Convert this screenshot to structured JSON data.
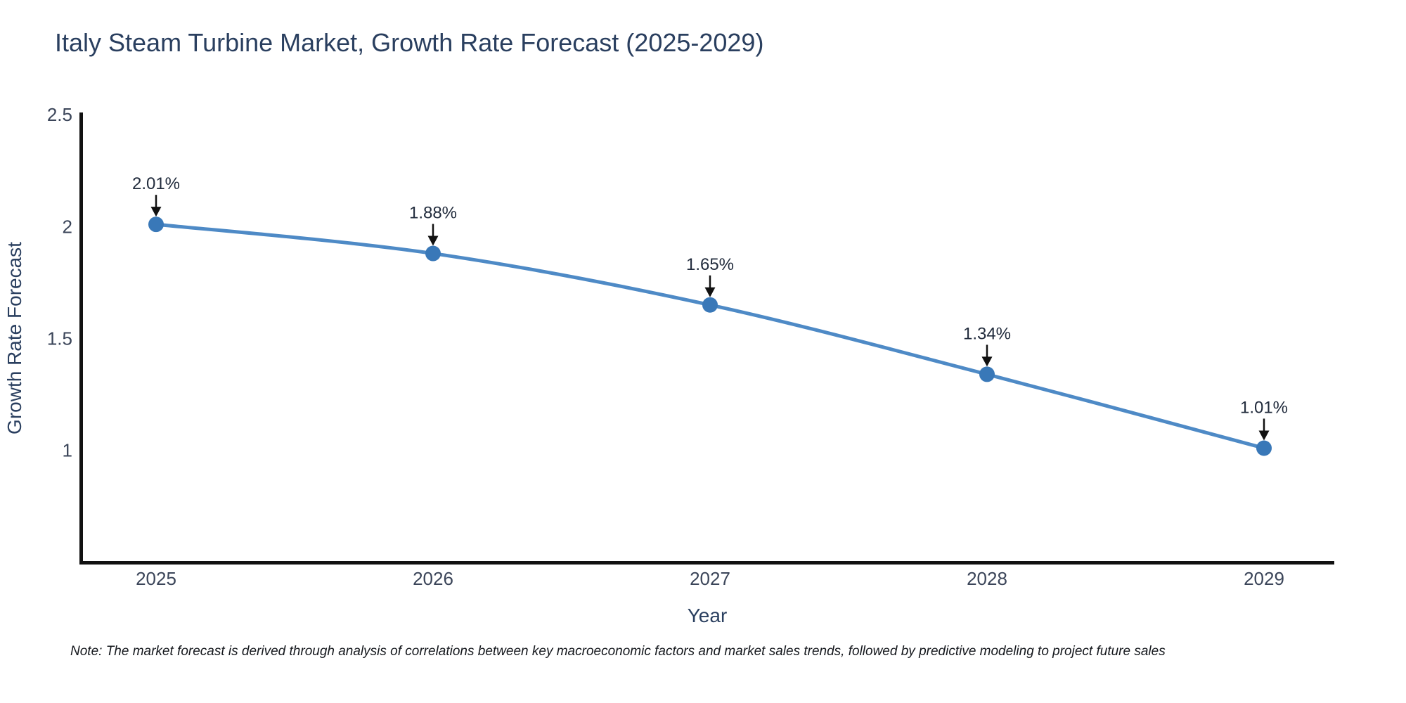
{
  "chart_data": {
    "type": "line",
    "curve": "spline",
    "title": "Italy Steam Turbine Market, Growth Rate Forecast (2025-2029)",
    "xlabel": "Year",
    "ylabel": "Growth Rate Forecast",
    "x": [
      2025,
      2026,
      2027,
      2028,
      2029
    ],
    "values": [
      2.01,
      1.88,
      1.65,
      1.34,
      1.01
    ],
    "point_labels": [
      "2.01%",
      "1.88%",
      "1.65%",
      "1.34%",
      "1.01%"
    ],
    "x_ticks": [
      "2025",
      "2026",
      "2027",
      "2028",
      "2029"
    ],
    "y_ticks": [
      "2.5",
      "2",
      "1.5",
      "1"
    ],
    "y_tick_values": [
      2.5,
      2,
      1.5,
      1
    ],
    "ylim": [
      0.49,
      2.51
    ],
    "grid": false,
    "legend": false,
    "line_color": "#4e8ac6",
    "marker_color": "#3978b8",
    "axis_color": "#111111",
    "arrow_color": "#111111",
    "title_color": "#2a3f5f",
    "tick_color": "#3b4559",
    "annotation_color": "#222c3d"
  },
  "footnote": {
    "text": "Note: The market forecast is derived through analysis of correlations between key macroeconomic factors and market sales trends, followed by predictive modeling to project future sales"
  }
}
